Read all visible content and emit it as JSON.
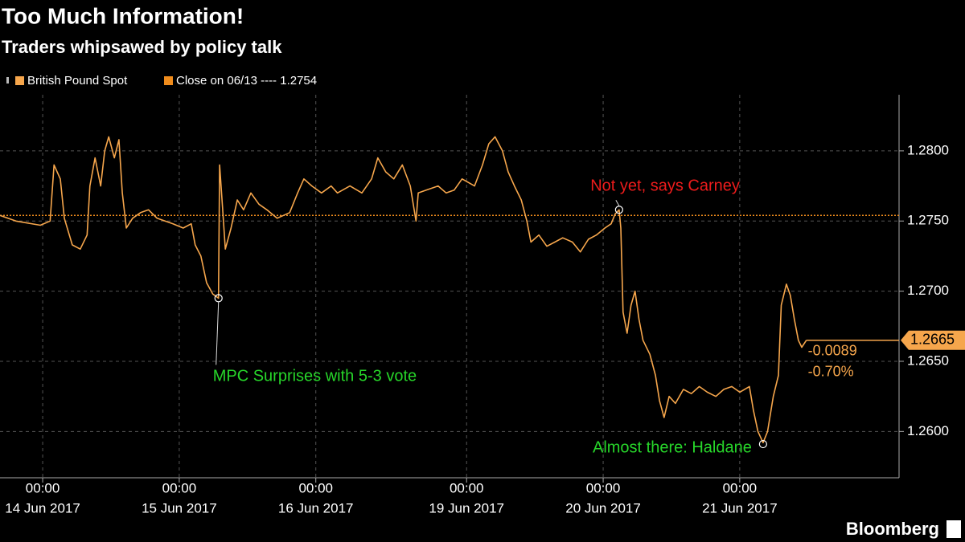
{
  "chart_data": {
    "type": "line",
    "title": "Too Much Information!",
    "subtitle": "Traders whipsawed by policy talk",
    "source": "Bloomberg",
    "xlim": [
      -7.5,
      150.5
    ],
    "ylim": [
      1.2567,
      1.284
    ],
    "yticks": [
      {
        "value": 1.26,
        "label": "1.2600"
      },
      {
        "value": 1.265,
        "label": "1.2650"
      },
      {
        "value": 1.27,
        "label": "1.2700"
      },
      {
        "value": 1.275,
        "label": "1.2750"
      },
      {
        "value": 1.28,
        "label": "1.2800"
      }
    ],
    "xticks": [
      {
        "value": 0,
        "label": "00:00"
      },
      {
        "value": 24,
        "label": "00:00"
      },
      {
        "value": 48,
        "label": "00:00"
      },
      {
        "value": 74.5,
        "label": "00:00"
      },
      {
        "value": 98.5,
        "label": "00:00"
      },
      {
        "value": 122.5,
        "label": "00:00"
      }
    ],
    "xtick_dates": [
      "14 Jun 2017",
      "15 Jun 2017",
      "16 Jun 2017",
      "19 Jun 2017",
      "20 Jun 2017",
      "21 Jun 2017"
    ],
    "grid": true,
    "x": [
      -7.5,
      -4.7,
      -0.4,
      1.3,
      2.0,
      3.1,
      3.8,
      5.2,
      6.6,
      7.8,
      8.3,
      9.2,
      10.2,
      10.9,
      11.6,
      12.6,
      13.4,
      14.0,
      14.7,
      15.8,
      17.2,
      18.6,
      20.1,
      21.5,
      22.9,
      24.7,
      26.1,
      26.8,
      27.8,
      28.8,
      29.9,
      30.9,
      31.1,
      31.6,
      32.1,
      33.1,
      34.2,
      35.3,
      36.6,
      38.0,
      39.4,
      41.2,
      43.4,
      44.8,
      45.9,
      47.3,
      49.0,
      50.7,
      51.8,
      54.0,
      56.1,
      57.8,
      58.9,
      60.3,
      61.7,
      63.2,
      64.6,
      65.6,
      66.0,
      67.4,
      69.5,
      70.9,
      72.3,
      73.7,
      75.9,
      77.3,
      78.4,
      79.5,
      80.8,
      81.8,
      82.9,
      84.1,
      85.1,
      85.8,
      87.2,
      88.6,
      90.0,
      91.4,
      93.1,
      94.5,
      95.9,
      97.3,
      98.8,
      99.9,
      100.6,
      101.3,
      101.6,
      102.0,
      102.7,
      103.4,
      104.1,
      104.8,
      105.5,
      106.7,
      107.7,
      108.4,
      109.2,
      110.1,
      111.2,
      112.6,
      114.0,
      115.4,
      116.8,
      118.3,
      119.7,
      121.1,
      122.5,
      124.2,
      124.9,
      125.7,
      126.6,
      127.4,
      128.4,
      129.3,
      129.8,
      130.7,
      131.4,
      132.1,
      132.8,
      133.4,
      134.2
    ],
    "series": [
      {
        "name": "British Pound Spot",
        "color": "#f6a64c",
        "values": [
          1.2754,
          1.275,
          1.2747,
          1.275,
          1.279,
          1.278,
          1.2752,
          1.2733,
          1.273,
          1.274,
          1.2775,
          1.2795,
          1.2775,
          1.28,
          1.281,
          1.2795,
          1.2808,
          1.277,
          1.2745,
          1.2752,
          1.2756,
          1.2758,
          1.2752,
          1.275,
          1.2748,
          1.2745,
          1.2748,
          1.2733,
          1.2725,
          1.2706,
          1.2698,
          1.2695,
          1.279,
          1.276,
          1.273,
          1.2745,
          1.2765,
          1.2758,
          1.277,
          1.2762,
          1.2758,
          1.2752,
          1.2756,
          1.277,
          1.278,
          1.2775,
          1.277,
          1.2775,
          1.277,
          1.2775,
          1.277,
          1.278,
          1.2795,
          1.2785,
          1.278,
          1.279,
          1.2775,
          1.275,
          1.277,
          1.2772,
          1.2775,
          1.277,
          1.2772,
          1.278,
          1.2775,
          1.279,
          1.2805,
          1.281,
          1.28,
          1.2785,
          1.2775,
          1.2765,
          1.275,
          1.2735,
          1.274,
          1.2732,
          1.2735,
          1.2738,
          1.2735,
          1.2728,
          1.2737,
          1.274,
          1.2745,
          1.2748,
          1.2755,
          1.2758,
          1.2745,
          1.2685,
          1.267,
          1.269,
          1.27,
          1.268,
          1.2665,
          1.2655,
          1.264,
          1.2622,
          1.261,
          1.2625,
          1.262,
          1.263,
          1.2627,
          1.2632,
          1.2628,
          1.2625,
          1.263,
          1.2632,
          1.2628,
          1.2632,
          1.2615,
          1.26,
          1.2592,
          1.26,
          1.2625,
          1.264,
          1.269,
          1.2705,
          1.2697,
          1.268,
          1.2665,
          1.266,
          1.2665
        ]
      }
    ],
    "reference": {
      "label": "Close on 06/13 ----",
      "value": 1.2754,
      "color": "#f08c1c"
    },
    "last": {
      "value": 1.2665,
      "change": -0.0089,
      "change_pct": {
        "value": -0.7,
        "label": "-0.70%"
      }
    },
    "annotations": [
      {
        "text": "MPC Surprises with 5-3 vote",
        "x": 30.9,
        "y": 1.2695,
        "color": "#27d62a"
      },
      {
        "text": "Not yet, says Carney",
        "x": 101.3,
        "y": 1.2758,
        "color": "#ee1c1c"
      },
      {
        "text": "Almost there: Haldane",
        "x": 126.6,
        "y": 1.2591,
        "color": "#27d62a"
      }
    ]
  }
}
